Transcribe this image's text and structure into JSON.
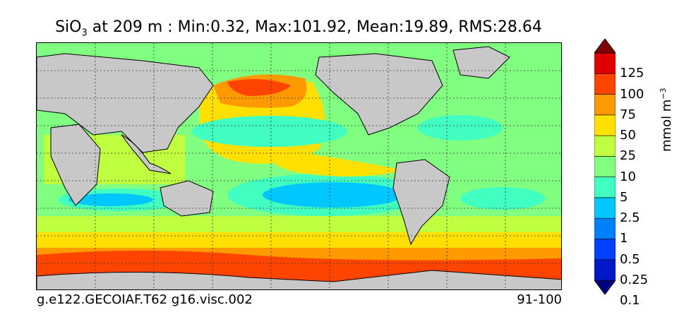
{
  "title": {
    "variable": "SiO",
    "variable_sub": "3",
    "rest": " at 209 m : Min:0.32, Max:101.92, Mean:19.89, RMS:28.64"
  },
  "footer": {
    "case_name": "g.e122.GECOIAF.T62 g16.visc.002",
    "years": "91-100"
  },
  "colorbar": {
    "unit_text": "mmol m",
    "unit_exp": "−3",
    "levels": [
      "125",
      "100",
      "75",
      "50",
      "25",
      "10",
      "5",
      "2.5",
      "1",
      "0.5",
      "0.25",
      "0.1"
    ],
    "colors": [
      "#000080",
      "#0018c8",
      "#0040ff",
      "#0080ff",
      "#00c8ff",
      "#40ffc0",
      "#80ff80",
      "#c0ff40",
      "#ffe000",
      "#ff9900",
      "#ff4400",
      "#e00000",
      "#800000"
    ],
    "land_color": "#c8c8c8"
  }
}
